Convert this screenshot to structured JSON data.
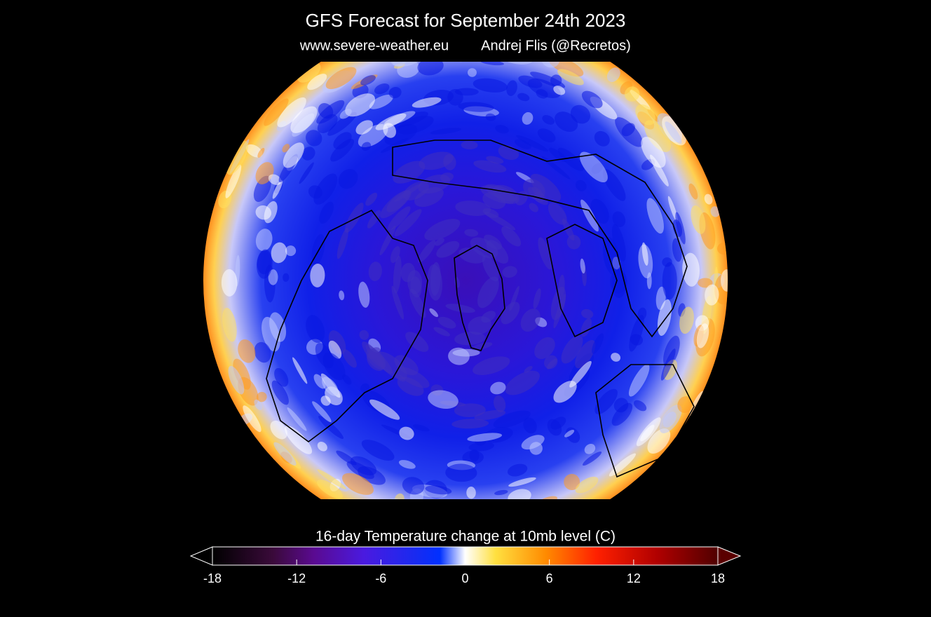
{
  "header": {
    "title": "GFS Forecast for September 24th 2023",
    "website": "www.severe-weather.eu",
    "author": "Andrej Flis (@Recretos)"
  },
  "colorbar": {
    "label": "16-day Temperature change at 10mb level (C)",
    "range": [
      -18,
      18
    ],
    "ticks": [
      -18,
      -12,
      -6,
      0,
      6,
      12,
      18
    ]
  }
}
